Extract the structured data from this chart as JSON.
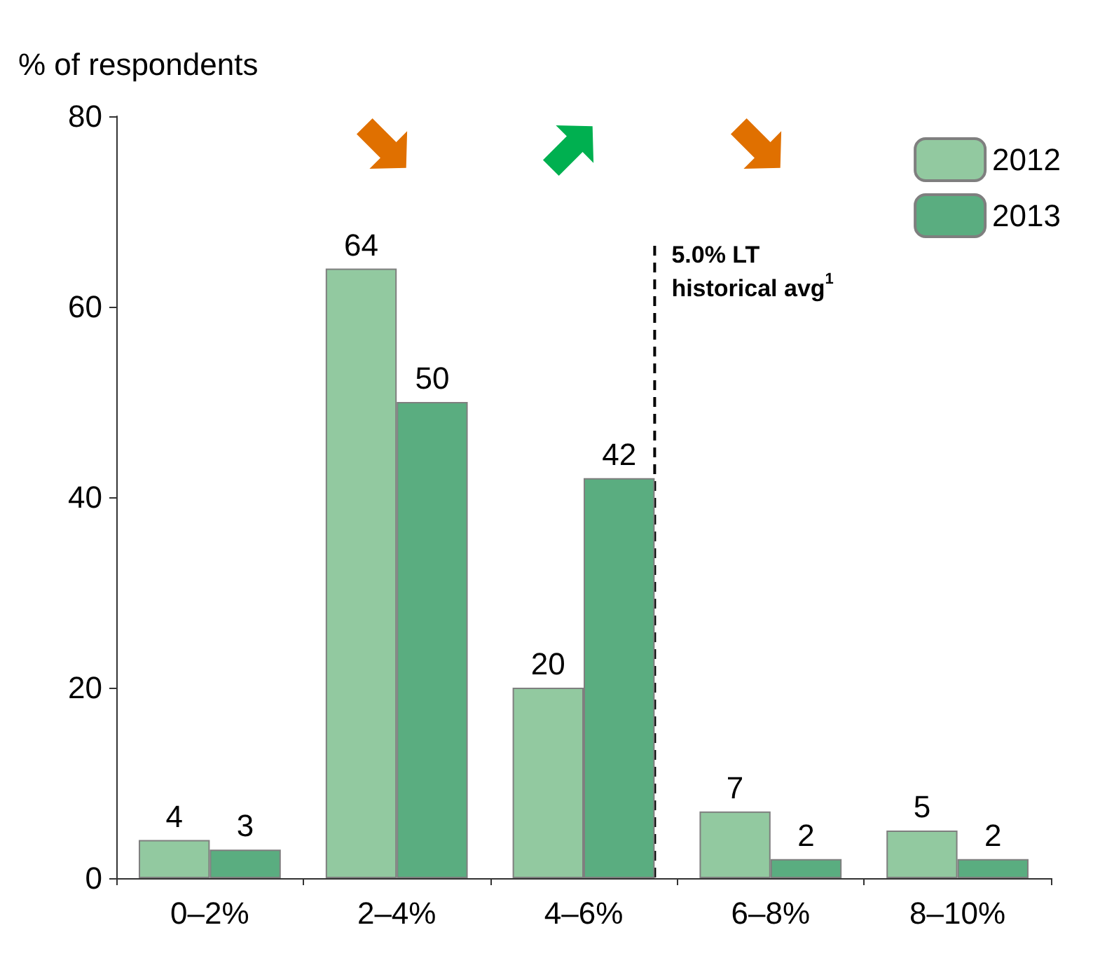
{
  "chart_data": {
    "type": "bar",
    "ylabel": "% of respondents",
    "categories": [
      "0–2%",
      "2–4%",
      "4–6%",
      "6–8%",
      "8–10%"
    ],
    "series": [
      {
        "name": "2012",
        "color": "#92c9a0",
        "values": [
          4,
          64,
          20,
          7,
          5
        ]
      },
      {
        "name": "2013",
        "color": "#5aad80",
        "values": [
          3,
          50,
          42,
          2,
          2
        ]
      }
    ],
    "ylim": [
      0,
      80
    ],
    "yticks": [
      0,
      20,
      40,
      60,
      80
    ],
    "grid": false,
    "legend": "top right",
    "data_labels": true,
    "ref_lines": [
      {
        "axis": "x",
        "value": "4–6%",
        "label": "5.0% LT historical avg$^{1}$",
        "line_style": "dashed",
        "color": "#000000"
      }
    ]
  }
}
